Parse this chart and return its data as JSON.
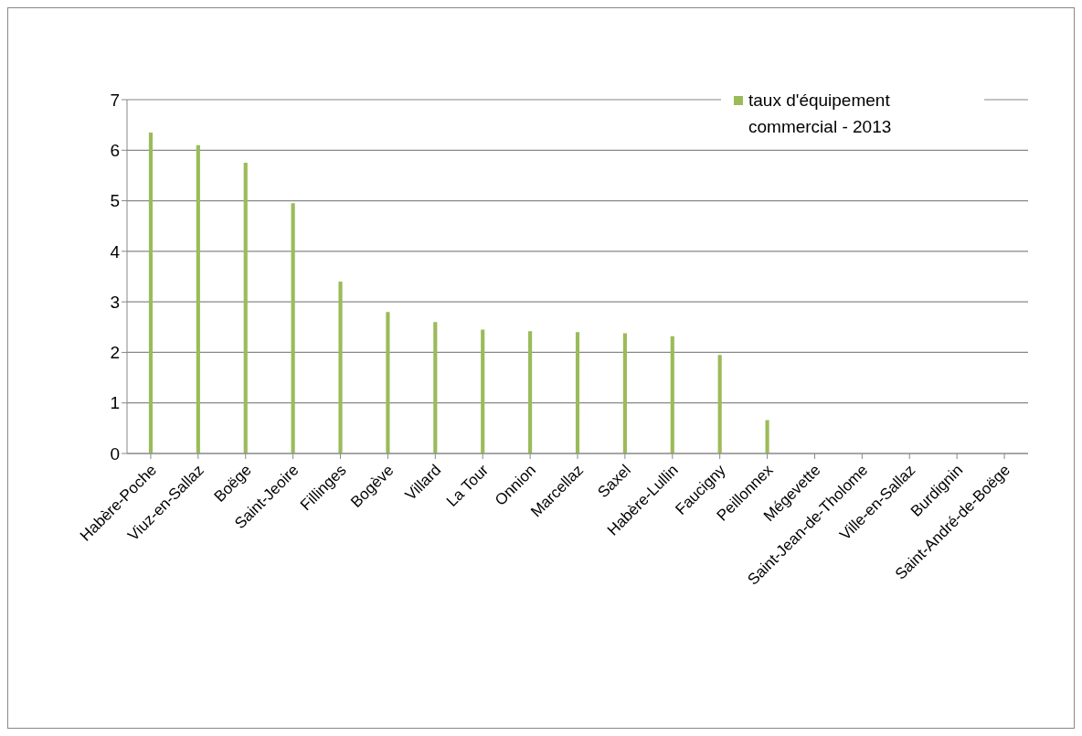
{
  "chart_data": {
    "type": "bar",
    "categories": [
      "Habère-Poche",
      "Viuz-en-Sallaz",
      "Boëge",
      "Saint-Jeoire",
      "Fillinges",
      "Bogève",
      "Villard",
      "La Tour",
      "Onnion",
      "Marcellaz",
      "Saxel",
      "Habère-Lullin",
      "Faucigny",
      "Peillonnex",
      "Mégevette",
      "Saint-Jean-de-Tholome",
      "Ville-en-Sallaz",
      "Burdignin",
      "Saint-André-de-Boëge"
    ],
    "series": [
      {
        "name": "taux d'équipement commercial - 2013",
        "color": "#9bbb59",
        "values": [
          6.35,
          6.1,
          5.75,
          4.95,
          3.4,
          2.8,
          2.6,
          2.45,
          2.42,
          2.4,
          2.38,
          2.32,
          1.95,
          0.66,
          0,
          0,
          0,
          0,
          0
        ]
      }
    ],
    "ylim": [
      0,
      7
    ],
    "yticks": [
      0,
      1,
      2,
      3,
      4,
      5,
      6,
      7
    ],
    "grid": "y",
    "legend": "top right"
  }
}
